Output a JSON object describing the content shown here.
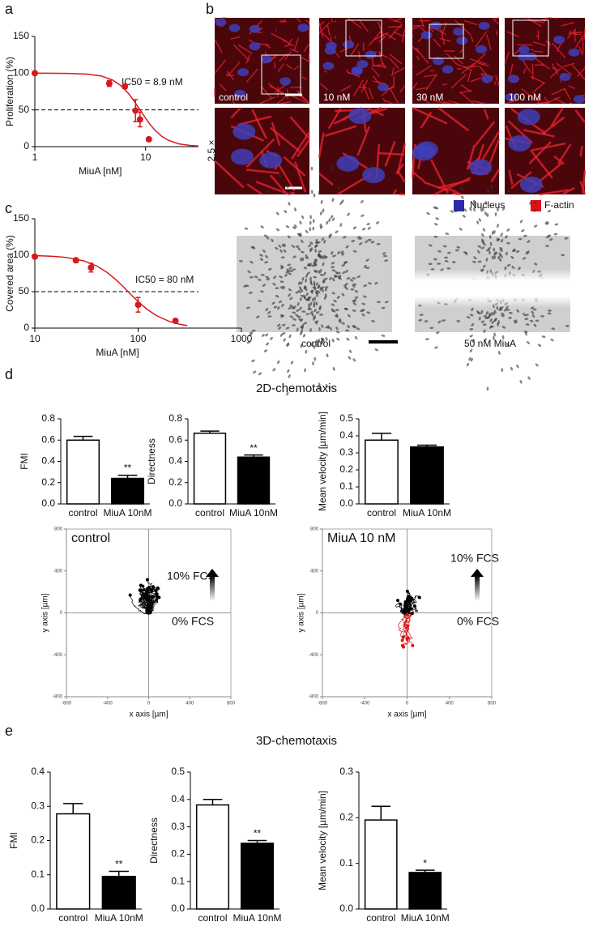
{
  "panel_labels": [
    "a",
    "b",
    "c",
    "d",
    "e"
  ],
  "section_titles": [
    "2D-chemotaxis",
    "3D-chemotaxis"
  ],
  "micrographs": {
    "labels": [
      "control",
      "10 nM",
      "30 nM",
      "100 nM"
    ],
    "zoom_label": "2.5 ×",
    "legend": [
      {
        "name": "Nucleus",
        "color": "#2b2ba8"
      },
      {
        "name": "F-actin",
        "color": "#e0101a"
      }
    ]
  },
  "wound_images": {
    "labels": [
      "control",
      "50 nM MiuA"
    ]
  },
  "chart_data": [
    {
      "type": "dose-response",
      "xlabel": "MiuA [nM]",
      "ylabel": "Proliferation (%)",
      "xscale": "log",
      "xlim": [
        1,
        30
      ],
      "xticks": [
        1,
        10
      ],
      "ylim": [
        0,
        150
      ],
      "yticks": [
        0,
        50,
        100,
        150
      ],
      "x": [
        1,
        4.7,
        6.5,
        8.1,
        8.9,
        10.7
      ],
      "values": [
        100,
        86,
        82,
        49,
        37,
        10
      ],
      "errors": [
        null,
        4,
        3,
        15,
        10,
        2
      ],
      "color": "#d7191c",
      "reference_line": 50,
      "annotation": "IC50 = 8.9 nM",
      "curve": {
        "x": [
          1,
          2,
          3,
          4,
          5,
          6,
          7,
          8,
          9,
          10,
          11,
          12,
          14,
          16,
          20,
          25,
          30
        ],
        "y": [
          100,
          99.7,
          98.7,
          96.1,
          90.9,
          82.9,
          72.3,
          60.5,
          48.9,
          38.6,
          30.0,
          23.2,
          14.0,
          8.7,
          3.8,
          1.6,
          0.8
        ]
      }
    },
    {
      "type": "dose-response",
      "xlabel": "MiuA [nM]",
      "ylabel": "Covered area (%)",
      "xscale": "log",
      "xlim": [
        10,
        1000
      ],
      "xticks": [
        10,
        100,
        1000
      ],
      "ylim": [
        0,
        150
      ],
      "yticks": [
        0,
        50,
        100,
        150
      ],
      "x": [
        10,
        25,
        35,
        100,
        230
      ],
      "values": [
        98,
        93,
        83,
        32,
        10
      ],
      "errors": [
        null,
        3,
        6,
        10,
        null
      ],
      "color": "#d7191c",
      "reference_line": 50,
      "annotation": "IC50 = 80 nM",
      "curve": {
        "x": [
          10,
          15,
          20,
          30,
          40,
          50,
          60,
          70,
          80,
          90,
          100,
          120,
          150,
          200,
          250,
          300
        ],
        "y": [
          99.4,
          98.5,
          97.0,
          92.1,
          85.0,
          76.4,
          67.2,
          58.3,
          50,
          42.7,
          36.4,
          26.6,
          17.2,
          9.2,
          5.5,
          3.5
        ]
      }
    },
    {
      "type": "bar",
      "ylabel": "FMI",
      "categories": [
        "control",
        "MiuA 10nM"
      ],
      "values": [
        0.6,
        0.24
      ],
      "errors": [
        0.035,
        0.03
      ],
      "colors": [
        "#ffffff",
        "#000000"
      ],
      "ylim": [
        0,
        0.8
      ],
      "yticks": [
        {
          "value": 0,
          "label": "0.0"
        },
        0.2,
        0.4,
        0.6,
        0.8
      ],
      "significance": [
        null,
        "**"
      ]
    },
    {
      "type": "bar",
      "ylabel": "Directness",
      "categories": [
        "control",
        "MiuA 10nM"
      ],
      "values": [
        0.665,
        0.44
      ],
      "errors": [
        0.02,
        0.02
      ],
      "colors": [
        "#ffffff",
        "#000000"
      ],
      "ylim": [
        0,
        0.8
      ],
      "yticks": [
        {
          "value": 0,
          "label": "0.0"
        },
        0.2,
        0.4,
        0.6,
        0.8
      ],
      "significance": [
        null,
        "**"
      ]
    },
    {
      "type": "bar",
      "ylabel": "Mean velocity [µm/min]",
      "categories": [
        "control",
        "MiuA 10nM"
      ],
      "values": [
        0.375,
        0.335
      ],
      "errors": [
        0.04,
        0.01
      ],
      "colors": [
        "#ffffff",
        "#000000"
      ],
      "ylim": [
        0,
        0.5
      ],
      "yticks": [
        {
          "value": 0,
          "label": "0.0"
        },
        0.1,
        0.2,
        0.3,
        0.4,
        0.5
      ]
    },
    {
      "type": "trajectory",
      "annotation": "control",
      "xlabel": "x axis [µm]",
      "ylabel": "y axis [µm]",
      "xlim": [
        -800,
        800
      ],
      "ylim": [
        -800,
        800
      ],
      "xticks": [
        -800,
        -400,
        0,
        400,
        800
      ],
      "yticks": [
        -800,
        -400,
        0,
        400,
        800
      ],
      "gradient_labels": [
        "10% FCS",
        "0% FCS"
      ],
      "colors": [
        "#000000"
      ]
    },
    {
      "type": "trajectory",
      "annotation": "MiuA 10 nM",
      "xlabel": "x axis [µm]",
      "ylabel": "y axis [µm]",
      "xlim": [
        -800,
        800
      ],
      "ylim": [
        -800,
        800
      ],
      "xticks": [
        -800,
        -400,
        0,
        400,
        800
      ],
      "yticks": [
        -800,
        -400,
        0,
        400,
        800
      ],
      "gradient_labels": [
        "10% FCS",
        "0% FCS"
      ],
      "colors": [
        "#000000",
        "#d7191c"
      ]
    },
    {
      "type": "bar",
      "ylabel": "FMI",
      "categories": [
        "control",
        "MiuA 10nM"
      ],
      "values": [
        0.278,
        0.095
      ],
      "errors": [
        0.03,
        0.015
      ],
      "colors": [
        "#ffffff",
        "#000000"
      ],
      "ylim": [
        0,
        0.4
      ],
      "yticks": [
        {
          "value": 0,
          "label": "0.0"
        },
        0.1,
        0.2,
        0.3,
        0.4
      ],
      "significance": [
        null,
        "**"
      ]
    },
    {
      "type": "bar",
      "ylabel": "Directness",
      "categories": [
        "control",
        "MiuA 10nM"
      ],
      "values": [
        0.38,
        0.24
      ],
      "errors": [
        0.02,
        0.01
      ],
      "colors": [
        "#ffffff",
        "#000000"
      ],
      "ylim": [
        0,
        0.5
      ],
      "yticks": [
        {
          "value": 0,
          "label": "0.0"
        },
        0.1,
        0.2,
        0.3,
        0.4,
        0.5
      ],
      "significance": [
        null,
        "**"
      ]
    },
    {
      "type": "bar",
      "ylabel": "Mean velocity [µm/min]",
      "categories": [
        "control",
        "MiuA 10nM"
      ],
      "values": [
        0.195,
        0.08
      ],
      "errors": [
        0.03,
        0.005
      ],
      "colors": [
        "#ffffff",
        "#000000"
      ],
      "ylim": [
        0,
        0.3
      ],
      "yticks": [
        {
          "value": 0,
          "label": "0.0"
        },
        0.1,
        0.2,
        0.3
      ],
      "significance": [
        null,
        "*"
      ]
    }
  ]
}
